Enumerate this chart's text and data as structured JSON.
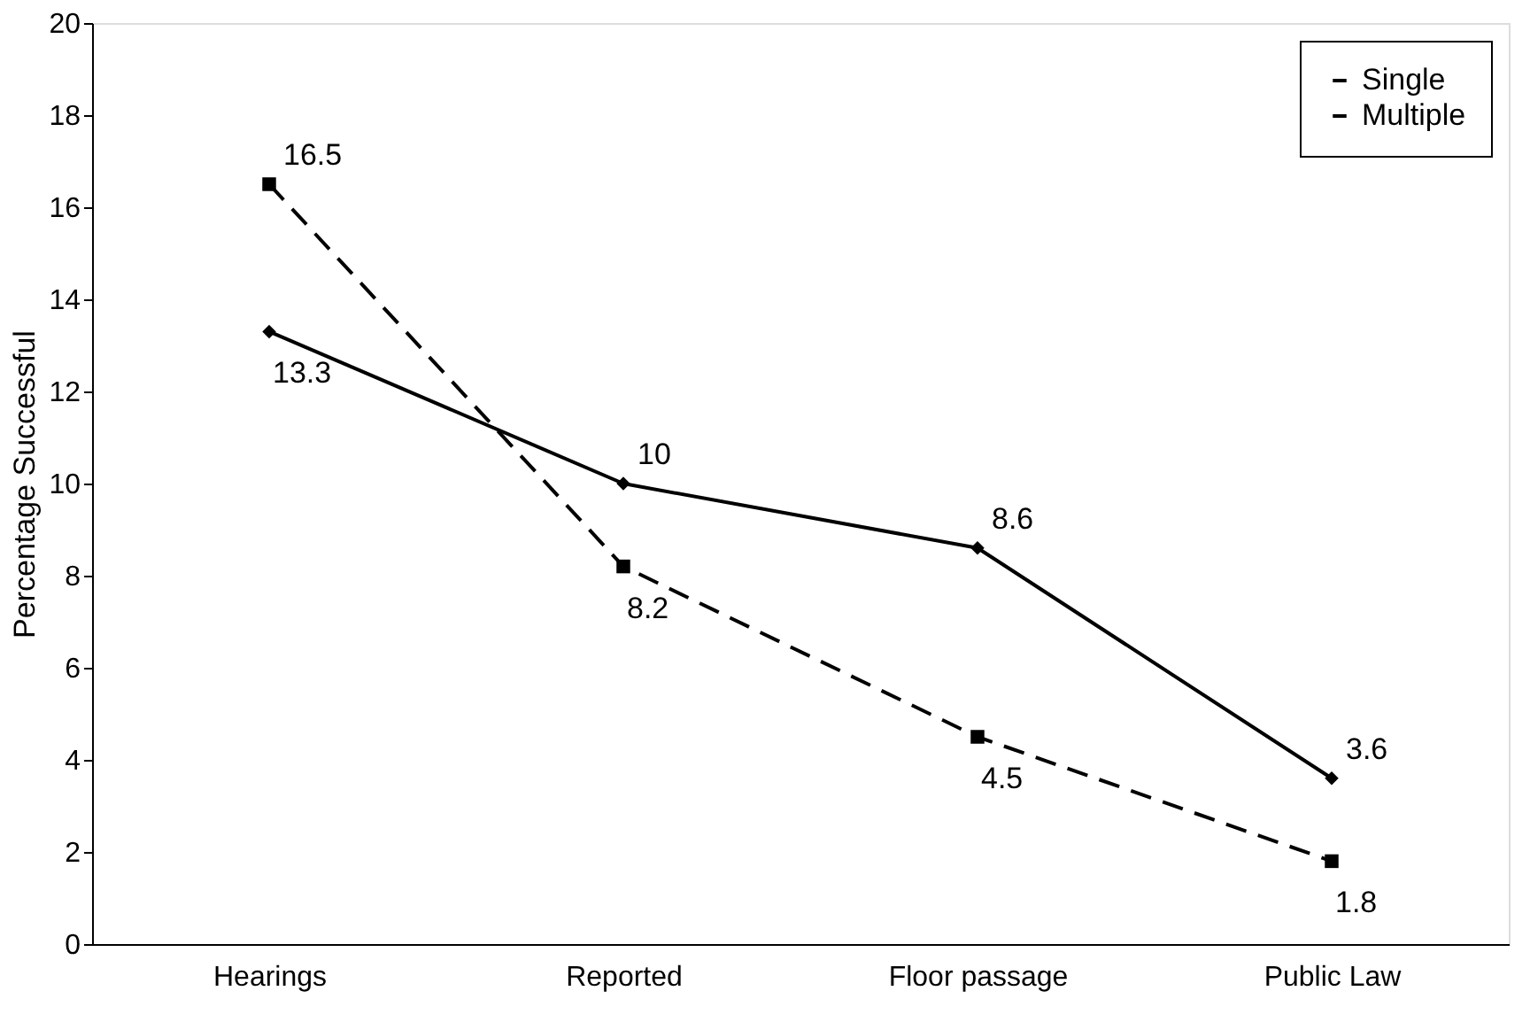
{
  "chart_data": {
    "type": "line",
    "ylabel": "Percentage Successful",
    "categories": [
      "Hearings",
      "Reported",
      "Floor passage",
      "Public Law"
    ],
    "series": [
      {
        "name": "Single",
        "color": "#000000",
        "values": [
          13.3,
          10,
          8.6,
          3.6
        ],
        "marker": "diamond",
        "line_style": "solid"
      },
      {
        "name": "Multiple",
        "color": "#000000",
        "values": [
          16.5,
          8.2,
          4.5,
          1.8
        ],
        "marker": "square",
        "line_style": "dashed"
      }
    ],
    "ylim": [
      0,
      20
    ],
    "yticks": [
      0,
      2,
      4,
      6,
      8,
      10,
      12,
      14,
      16,
      18,
      20
    ],
    "grid": false,
    "legend": "top right",
    "data_labels": true
  }
}
